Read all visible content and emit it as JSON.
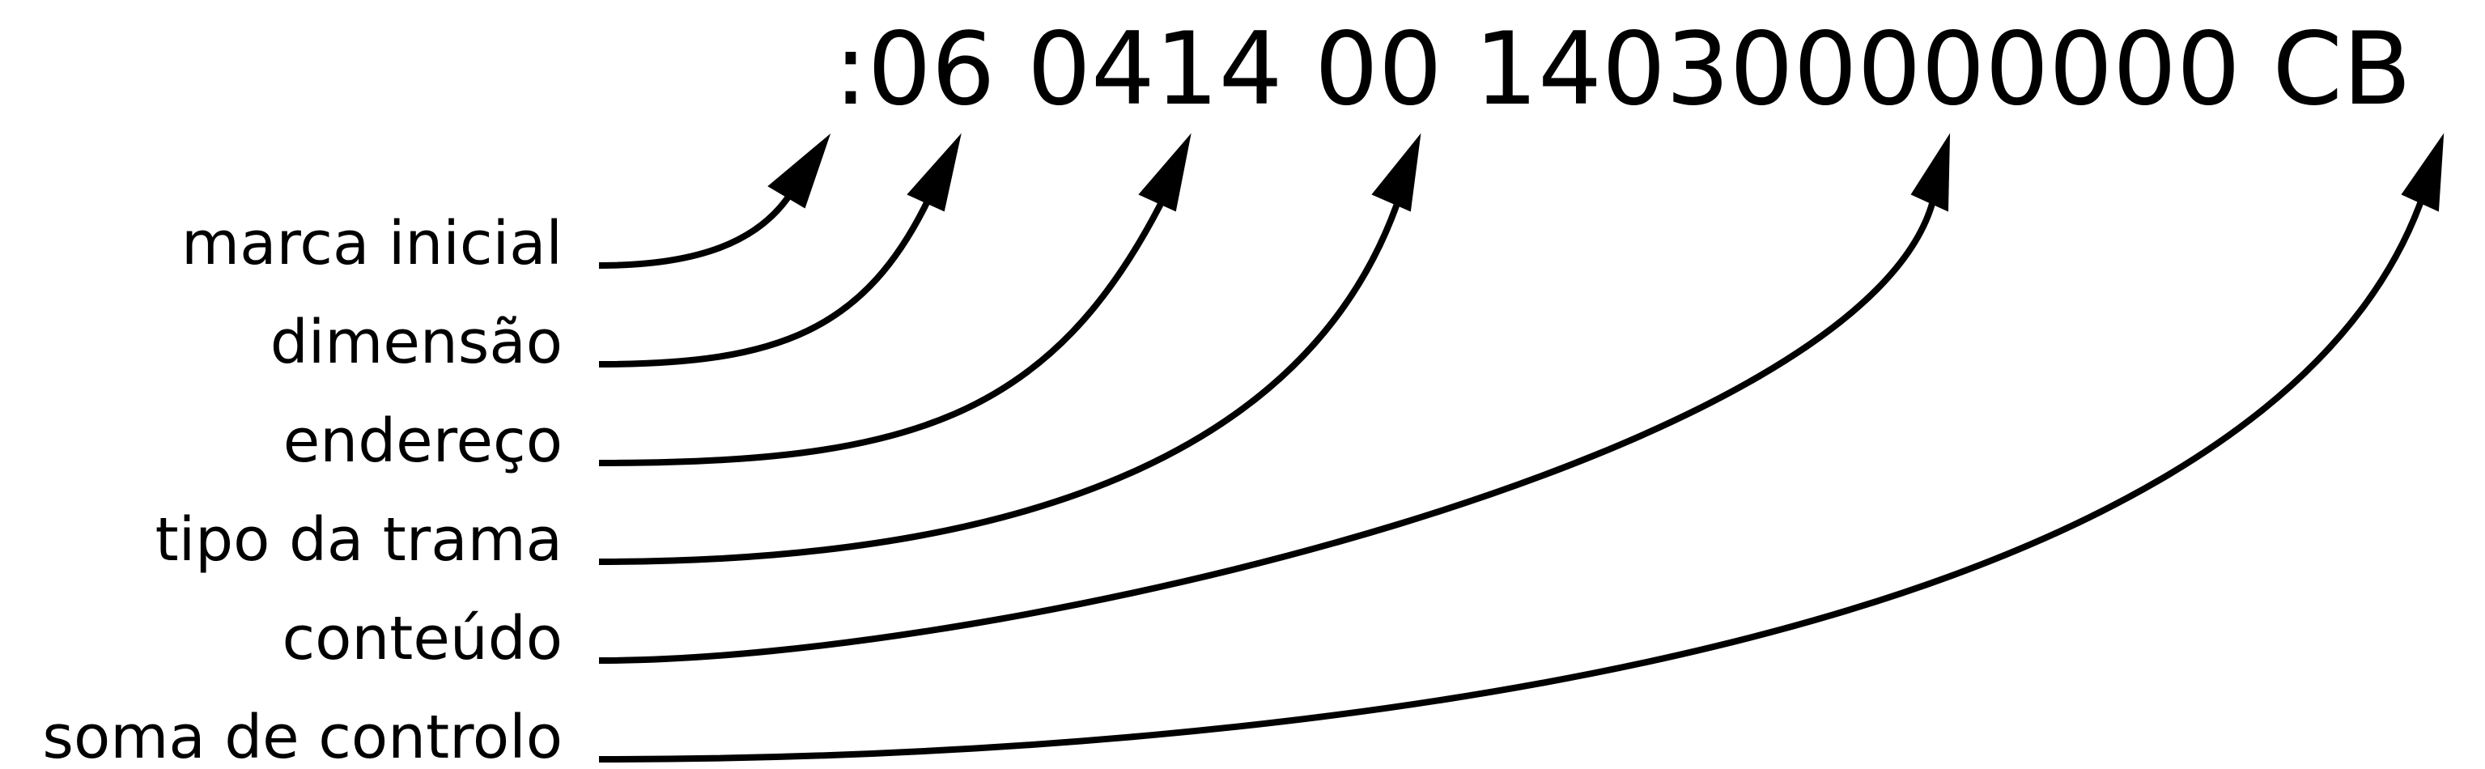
{
  "record": {
    "start_mark": ":",
    "length": "06",
    "address": "0414",
    "record_type": "00",
    "data": "140300000000",
    "checksum": "CB"
  },
  "labels": {
    "start_mark": "marca inicial",
    "length": "dimensão",
    "address": "endereço",
    "record_type": "tipo da trama",
    "data": "conteúdo",
    "checksum": "soma de controlo"
  },
  "colors": {
    "ink": "#000000",
    "background": "#ffffff"
  }
}
